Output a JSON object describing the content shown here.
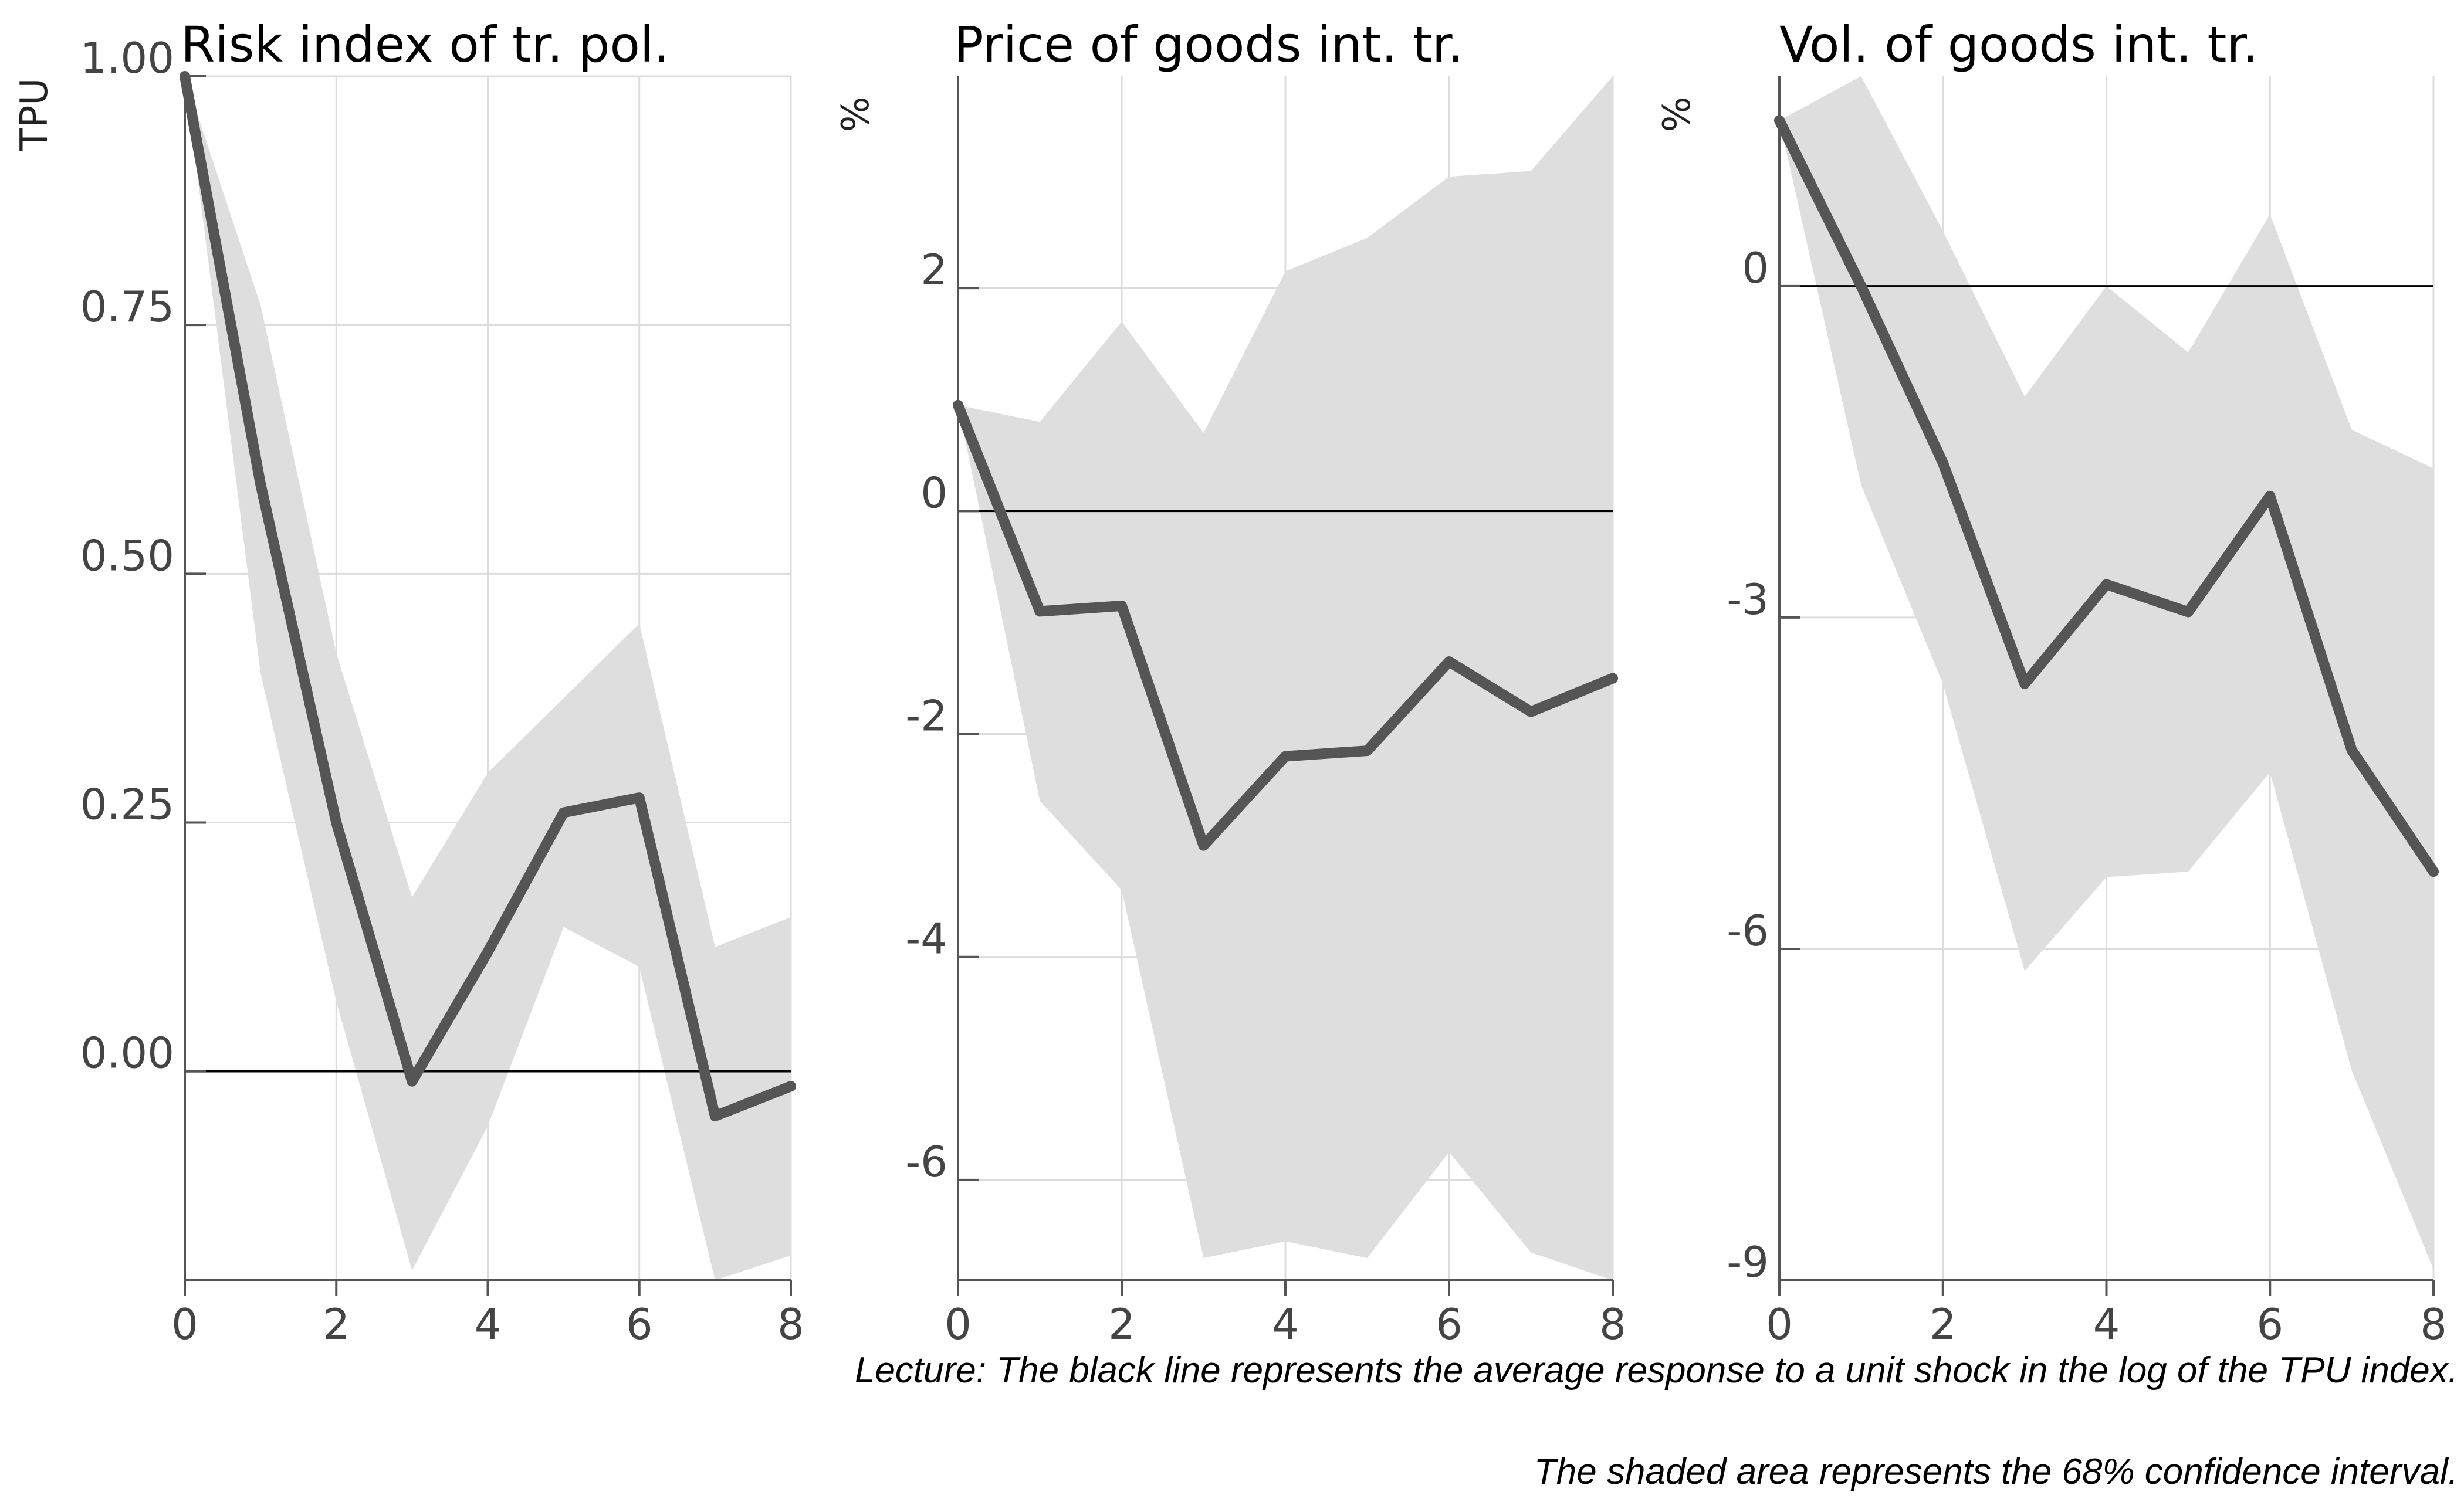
{
  "chart_data": [
    {
      "type": "line",
      "title": "Risk index of tr. pol.",
      "ylabel": "TPU",
      "xlabel": "",
      "x": [
        0,
        1,
        2,
        3,
        4,
        5,
        6,
        7,
        8
      ],
      "xticks": [
        0,
        2,
        4,
        6,
        8
      ],
      "xlim": [
        0,
        8
      ],
      "ylim": [
        -0.21,
        1.0
      ],
      "yticks": [
        0,
        0.25,
        0.5,
        0.75,
        1.0
      ],
      "yticklabels": [
        "0.00",
        "0.25",
        "0.50",
        "0.75",
        "1.00"
      ],
      "grid": true,
      "series": [
        {
          "values": [
            1.0,
            0.59,
            0.25,
            -0.01,
            0.12,
            0.26,
            0.275,
            -0.045,
            -0.015
          ]
        },
        {
          "role": "upper",
          "values": [
            1.0,
            0.77,
            0.42,
            0.175,
            0.3,
            0.375,
            0.45,
            0.125,
            0.155
          ]
        },
        {
          "role": "lower",
          "values": [
            1.0,
            0.4,
            0.07,
            -0.2,
            -0.055,
            0.145,
            0.105,
            -0.21,
            -0.185
          ]
        }
      ]
    },
    {
      "type": "line",
      "title": "Price of goods int. tr.",
      "ylabel": "%",
      "xlabel": "",
      "x": [
        0,
        1,
        2,
        3,
        4,
        5,
        6,
        7,
        8
      ],
      "xticks": [
        0,
        2,
        4,
        6,
        8
      ],
      "xlim": [
        0,
        8
      ],
      "ylim": [
        -6.9,
        3.9
      ],
      "yticks": [
        -6,
        -4,
        -2,
        0,
        2
      ],
      "yticklabels": [
        "-6",
        "-4",
        "-2",
        "0",
        "2"
      ],
      "grid": true,
      "series": [
        {
          "values": [
            0.95,
            -0.9,
            -0.85,
            -3.0,
            -2.2,
            -2.15,
            -1.35,
            -1.8,
            -1.5
          ]
        },
        {
          "role": "upper",
          "values": [
            0.95,
            0.8,
            1.7,
            0.7,
            2.15,
            2.45,
            3.0,
            3.05,
            3.9
          ]
        },
        {
          "role": "lower",
          "values": [
            0.95,
            -2.6,
            -3.4,
            -6.7,
            -6.55,
            -6.7,
            -5.75,
            -6.65,
            -6.9
          ]
        }
      ]
    },
    {
      "type": "line",
      "title": "Vol. of goods int. tr.",
      "ylabel": "%",
      "xlabel": "",
      "x": [
        0,
        1,
        2,
        3,
        4,
        5,
        6,
        7,
        8
      ],
      "xticks": [
        0,
        2,
        4,
        6,
        8
      ],
      "xlim": [
        0,
        8
      ],
      "ylim": [
        -9.0,
        1.9
      ],
      "yticks": [
        -9,
        -6,
        -3,
        0
      ],
      "yticklabels": [
        "-9",
        "-6",
        "-3",
        "0"
      ],
      "grid": true,
      "series": [
        {
          "values": [
            1.5,
            0.0,
            -1.6,
            -3.6,
            -2.7,
            -2.95,
            -1.9,
            -4.2,
            -5.3
          ]
        },
        {
          "role": "upper",
          "values": [
            1.5,
            1.9,
            0.5,
            -1.0,
            0.0,
            -0.6,
            0.65,
            -1.3,
            -1.65
          ]
        },
        {
          "role": "lower",
          "values": [
            1.5,
            -1.8,
            -3.6,
            -6.2,
            -5.35,
            -5.3,
            -4.4,
            -7.1,
            -8.9
          ]
        }
      ]
    }
  ],
  "footnote": {
    "line1": "Lecture: The black line represents the average response to a unit shock in the log of the TPU index.",
    "line2": "The shaded area represents the 68% confidence interval."
  },
  "colors": {
    "line": "#555555",
    "band": "#dedede",
    "grid": "#dcdcdc",
    "zero": "#000000"
  }
}
